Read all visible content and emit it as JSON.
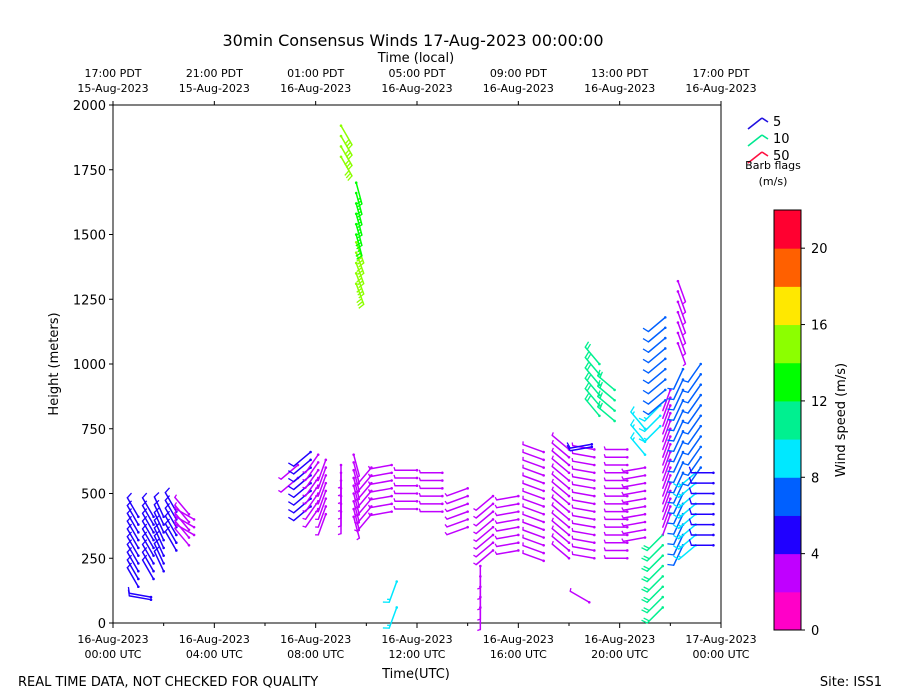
{
  "chart_data": {
    "type": "wind-barb",
    "title": "30min Consensus Winds 17-Aug-2023 00:00:00",
    "top_axis_label": "Time (local)",
    "xlabel": "Time(UTC)",
    "ylabel": "Height (meters)",
    "x_range_hours": [
      0,
      24
    ],
    "ylim": [
      0,
      2000
    ],
    "y_ticks": [
      0,
      250,
      500,
      750,
      1000,
      1250,
      1500,
      1750,
      2000
    ],
    "bottom_ticks": [
      {
        "hour": 0,
        "line1": "16-Aug-2023",
        "line2": "00:00 UTC"
      },
      {
        "hour": 4,
        "line1": "16-Aug-2023",
        "line2": "04:00 UTC"
      },
      {
        "hour": 8,
        "line1": "16-Aug-2023",
        "line2": "08:00 UTC"
      },
      {
        "hour": 12,
        "line1": "16-Aug-2023",
        "line2": "12:00 UTC"
      },
      {
        "hour": 16,
        "line1": "16-Aug-2023",
        "line2": "16:00 UTC"
      },
      {
        "hour": 20,
        "line1": "16-Aug-2023",
        "line2": "20:00 UTC"
      },
      {
        "hour": 24,
        "line1": "17-Aug-2023",
        "line2": "00:00 UTC"
      }
    ],
    "top_ticks": [
      {
        "hour": 0,
        "line1": "17:00 PDT",
        "line2": "15-Aug-2023"
      },
      {
        "hour": 4,
        "line1": "21:00 PDT",
        "line2": "15-Aug-2023"
      },
      {
        "hour": 8,
        "line1": "01:00 PDT",
        "line2": "16-Aug-2023"
      },
      {
        "hour": 12,
        "line1": "05:00 PDT",
        "line2": "16-Aug-2023"
      },
      {
        "hour": 16,
        "line1": "09:00 PDT",
        "line2": "16-Aug-2023"
      },
      {
        "hour": 20,
        "line1": "13:00 PDT",
        "line2": "16-Aug-2023"
      },
      {
        "hour": 24,
        "line1": "17:00 PDT",
        "line2": "16-Aug-2023"
      }
    ],
    "barb_legend": {
      "items": [
        {
          "label": "5",
          "color": "#2010e0"
        },
        {
          "label": "10",
          "color": "#00e890"
        },
        {
          "label": "50",
          "color": "#ff1040"
        }
      ],
      "title": "Barb flags",
      "units": "(m/s)"
    },
    "colorbar": {
      "label": "Wind speed (m/s)",
      "min": 0,
      "max": 22,
      "ticks": [
        0,
        4,
        8,
        12,
        16,
        20
      ],
      "colors": [
        "#ff00c8",
        "#c000ff",
        "#2000ff",
        "#0060ff",
        "#00e8ff",
        "#00f090",
        "#00ff00",
        "#8cff00",
        "#ffe800",
        "#ff6000",
        "#ff0030"
      ]
    },
    "columns": [
      {
        "hour": 1.0,
        "heights": [
          140,
          170,
          200,
          230,
          260,
          290,
          320,
          350,
          380,
          410
        ],
        "speed": 5.0,
        "dir": 330
      },
      {
        "hour": 1.5,
        "heights": [
          90,
          100
        ],
        "speed": 5.0,
        "dir": 280
      },
      {
        "hour": 1.6,
        "heights": [
          170,
          200,
          230,
          260,
          290,
          320,
          350,
          380,
          410
        ],
        "speed": 5.0,
        "dir": 330
      },
      {
        "hour": 2.0,
        "heights": [
          200,
          230,
          260,
          290,
          320,
          350,
          380,
          410
        ],
        "speed": 5.0,
        "dir": 335
      },
      {
        "hour": 2.5,
        "heights": [
          280,
          310,
          340,
          370,
          400,
          430
        ],
        "speed": 5.0,
        "dir": 330
      },
      {
        "hour": 3.0,
        "heights": [
          300,
          330,
          360,
          390,
          420
        ],
        "speed": 3.5,
        "dir": 320
      },
      {
        "hour": 3.2,
        "heights": [
          340,
          370,
          400
        ],
        "speed": 2.5,
        "dir": 300
      },
      {
        "hour": 7.3,
        "heights": [
          560,
          610
        ],
        "speed": 3.5,
        "dir": 230
      },
      {
        "hour": 7.8,
        "heights": [
          450,
          480,
          510,
          540,
          570,
          600,
          630,
          660
        ],
        "speed": 5.0,
        "dir": 230
      },
      {
        "hour": 8.1,
        "heights": [
          440,
          470,
          500,
          530,
          560,
          590,
          620,
          650
        ],
        "speed": 3.8,
        "dir": 215
      },
      {
        "hour": 8.4,
        "heights": [
          420,
          450,
          480,
          510,
          540,
          570,
          600,
          630
        ],
        "speed": 3.0,
        "dir": 200
      },
      {
        "hour": 9.0,
        "heights": [
          430,
          460,
          490,
          520,
          550,
          580,
          610
        ],
        "speed": 2.8,
        "dir": 180
      },
      {
        "hour": 9.5,
        "heights": [
          410,
          440,
          470,
          500,
          530,
          560,
          590,
          620,
          650
        ],
        "speed": 2.5,
        "dir": 165
      },
      {
        "hour": 9.0,
        "heights": [
          1800,
          1840,
          1880,
          1920
        ],
        "speed": 15.0,
        "dir": 150
      },
      {
        "hour": 9.6,
        "heights": [
          1310,
          1350,
          1390,
          1430,
          1470
        ],
        "speed": 15.0,
        "dir": 160
      },
      {
        "hour": 9.6,
        "heights": [
          1500,
          1540,
          1580,
          1620,
          1660,
          1700
        ],
        "speed": 13.0,
        "dir": 165
      },
      {
        "hour": 10.2,
        "heights": [
          420,
          450,
          480,
          510,
          540,
          570,
          600
        ],
        "speed": 2.5,
        "dir": 220
      },
      {
        "hour": 11.2,
        "heights": [
          60,
          160
        ],
        "speed": 8.5,
        "dir": 200
      },
      {
        "hour": 11.0,
        "heights": [
          430,
          460,
          490,
          520,
          550,
          580,
          610
        ],
        "speed": 2.5,
        "dir": 260
      },
      {
        "hour": 12.0,
        "heights": [
          440,
          470,
          500,
          530,
          560,
          590
        ],
        "speed": 2.5,
        "dir": 270
      },
      {
        "hour": 13.0,
        "heights": [
          430,
          460,
          490,
          520,
          550,
          580
        ],
        "speed": 2.5,
        "dir": 270
      },
      {
        "hour": 14.0,
        "heights": [
          370,
          400,
          430,
          460,
          490,
          520
        ],
        "speed": 2.5,
        "dir": 250
      },
      {
        "hour": 14.5,
        "heights": [
          60,
          100,
          140,
          180,
          220
        ],
        "speed": 3.5,
        "dir": 180
      },
      {
        "hour": 15.0,
        "heights": [
          280,
          310,
          340,
          370,
          400,
          430,
          460,
          490
        ],
        "speed": 2.5,
        "dir": 230
      },
      {
        "hour": 16.0,
        "heights": [
          280,
          310,
          340,
          370,
          400,
          430,
          460,
          490
        ],
        "speed": 2.5,
        "dir": 260
      },
      {
        "hour": 17.0,
        "heights": [
          240,
          270,
          300,
          330,
          360,
          390,
          420,
          450,
          480,
          510,
          540,
          570,
          600,
          630,
          660
        ],
        "speed": 2.5,
        "dir": 290
      },
      {
        "hour": 18.0,
        "heights": [
          250,
          280,
          310,
          340,
          370,
          400,
          430,
          460,
          490,
          520,
          550,
          580,
          610,
          640,
          670
        ],
        "speed": 2.5,
        "dir": 310
      },
      {
        "hour": 18.8,
        "heights": [
          80
        ],
        "speed": 2.5,
        "dir": 300
      },
      {
        "hour": 19.0,
        "heights": [
          250,
          280,
          310,
          340,
          370,
          400,
          430,
          460,
          490,
          520,
          550,
          580,
          610,
          640,
          670
        ],
        "speed": 2.5,
        "dir": 280
      },
      {
        "hour": 18.9,
        "heights": [
          680,
          690
        ],
        "speed": 5.5,
        "dir": 260
      },
      {
        "hour": 19.2,
        "heights": [
          800,
          840,
          880,
          920,
          960,
          1000
        ],
        "speed": 10.0,
        "dir": 320
      },
      {
        "hour": 19.8,
        "heights": [
          780,
          820,
          860,
          900
        ],
        "speed": 10.0,
        "dir": 310
      },
      {
        "hour": 20.3,
        "heights": [
          250,
          280,
          310,
          340,
          370,
          400,
          430,
          460,
          490,
          520,
          550,
          580,
          610,
          640,
          670
        ],
        "speed": 2.5,
        "dir": 270
      },
      {
        "hour": 21.0,
        "heights": [
          330,
          360,
          390,
          420,
          450,
          480,
          510,
          540,
          570,
          600
        ],
        "speed": 2.8,
        "dir": 260
      },
      {
        "hour": 21.0,
        "heights": [
          650,
          700,
          750
        ],
        "speed": 8.5,
        "dir": 320
      },
      {
        "hour": 21.7,
        "heights": [
          60,
          100,
          140,
          180,
          220,
          260,
          300,
          340
        ],
        "speed": 10.0,
        "dir": 225
      },
      {
        "hour": 21.6,
        "heights": [
          760,
          800,
          840
        ],
        "speed": 9.5,
        "dir": 225
      },
      {
        "hour": 22.0,
        "heights": [
          420,
          450,
          480,
          510,
          540,
          570,
          600,
          630,
          660,
          690,
          720,
          750,
          780,
          810,
          840,
          870,
          900
        ],
        "speed": 2.0,
        "dir": 200
      },
      {
        "hour": 21.8,
        "heights": [
          860,
          900,
          940,
          980,
          1020,
          1060,
          1100,
          1140,
          1180
        ],
        "speed": 6.0,
        "dir": 230
      },
      {
        "hour": 22.3,
        "heights": [
          1080,
          1120,
          1160,
          1200,
          1240,
          1280,
          1320
        ],
        "speed": 2.5,
        "dir": 160
      },
      {
        "hour": 22.5,
        "heights": [
          300,
          340,
          380,
          420,
          460,
          500,
          540,
          580,
          620,
          660,
          700,
          740,
          780,
          820,
          860,
          900,
          940,
          980
        ],
        "speed": 6.5,
        "dir": 205
      },
      {
        "hour": 23.0,
        "heights": [
          300,
          340,
          380,
          420,
          460,
          500,
          540,
          580
        ],
        "speed": 8.5,
        "dir": 230
      },
      {
        "hour": 23.2,
        "heights": [
          600,
          640,
          680,
          720,
          760,
          800,
          840,
          880,
          920,
          960,
          1000
        ],
        "speed": 6.0,
        "dir": 215
      },
      {
        "hour": 23.7,
        "heights": [
          300,
          340,
          380,
          420,
          460,
          500,
          540,
          580
        ],
        "speed": 5.5,
        "dir": 270
      }
    ],
    "footer_left": "REAL TIME DATA, NOT CHECKED FOR QUALITY",
    "footer_right": "Site: ISS1"
  }
}
